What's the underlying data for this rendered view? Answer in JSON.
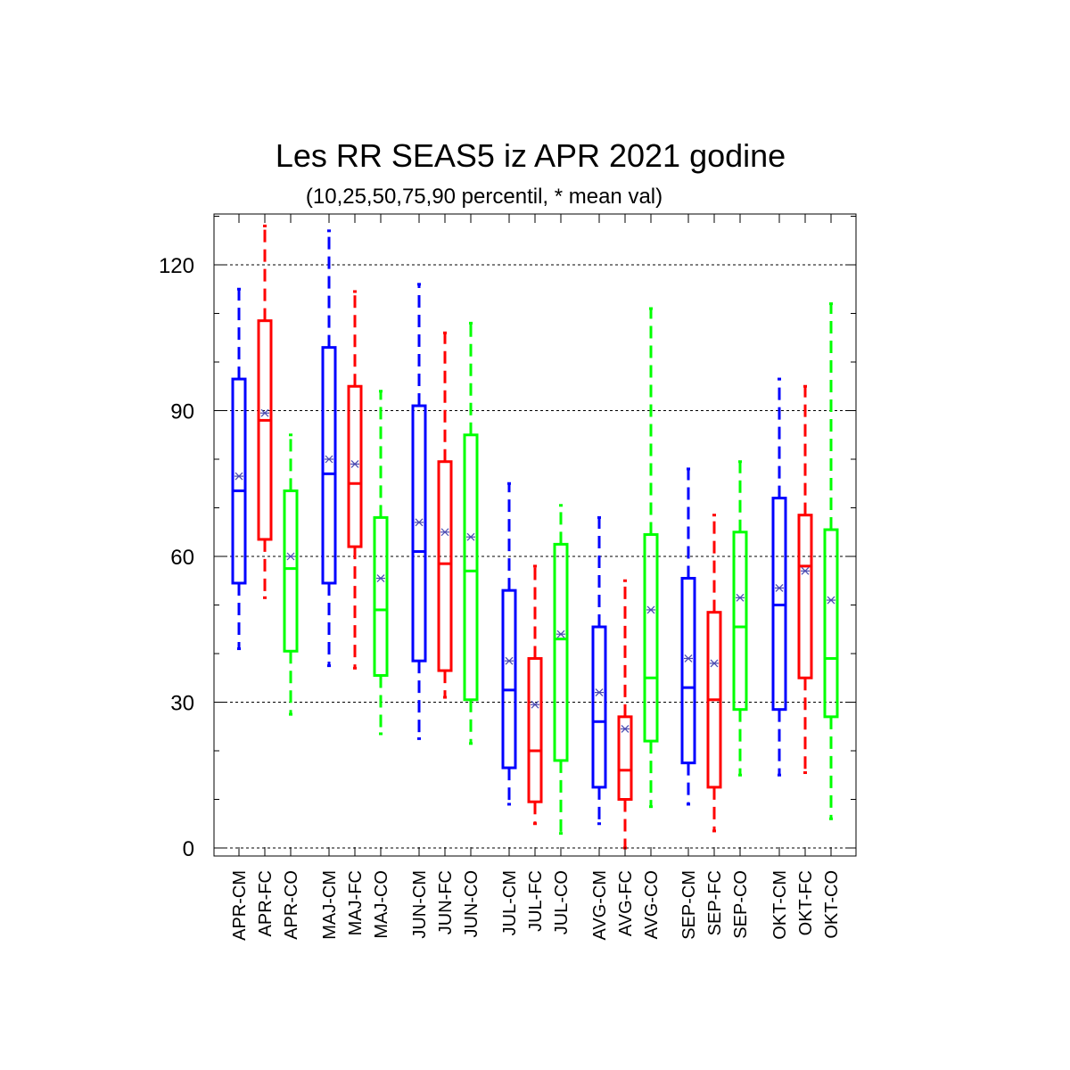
{
  "chart_data": {
    "type": "boxplot",
    "title": "Les RR SEAS5 iz APR 2021 godine",
    "subtitle": "(10,25,50,75,90 percentil, * mean val)",
    "xlabel": "",
    "ylabel": "",
    "ylim": [
      -2,
      130
    ],
    "yticks": [
      0,
      30,
      60,
      90,
      120
    ],
    "grid": "horizontal dashed at major ticks",
    "colors": {
      "CM": "#0000ff",
      "FC": "#ff0000",
      "CO": "#00ff00",
      "mean_marker": "#4a4ab0"
    },
    "boxes": [
      {
        "label": "APR-CM",
        "group": "CM",
        "p10": 41,
        "p25": 54.5,
        "p50": 73.5,
        "p75": 96.5,
        "p90": 115,
        "mean": 76.5
      },
      {
        "label": "APR-FC",
        "group": "FC",
        "p10": 51.5,
        "p25": 63.5,
        "p50": 88,
        "p75": 108.5,
        "p90": 128,
        "mean": 89.5
      },
      {
        "label": "APR-CO",
        "group": "CO",
        "p10": 27.5,
        "p25": 40.5,
        "p50": 57.5,
        "p75": 73.5,
        "p90": 85,
        "mean": 60
      },
      {
        "label": "MAJ-CM",
        "group": "CM",
        "p10": 37.5,
        "p25": 54.5,
        "p50": 77,
        "p75": 103,
        "p90": 127,
        "mean": 80
      },
      {
        "label": "MAJ-FC",
        "group": "FC",
        "p10": 37,
        "p25": 62,
        "p50": 75,
        "p75": 95,
        "p90": 114.5,
        "mean": 79
      },
      {
        "label": "MAJ-CO",
        "group": "CO",
        "p10": 23.5,
        "p25": 35.5,
        "p50": 49,
        "p75": 68,
        "p90": 94,
        "mean": 55.5
      },
      {
        "label": "JUN-CM",
        "group": "CM",
        "p10": 22.5,
        "p25": 38.5,
        "p50": 61,
        "p75": 91,
        "p90": 116,
        "mean": 67
      },
      {
        "label": "JUN-FC",
        "group": "FC",
        "p10": 31,
        "p25": 36.5,
        "p50": 58.5,
        "p75": 79.5,
        "p90": 106,
        "mean": 65
      },
      {
        "label": "JUN-CO",
        "group": "CO",
        "p10": 21.5,
        "p25": 30.5,
        "p50": 57,
        "p75": 85,
        "p90": 108,
        "mean": 64
      },
      {
        "label": "JUL-CM",
        "group": "CM",
        "p10": 9,
        "p25": 16.5,
        "p50": 32.5,
        "p75": 53,
        "p90": 75,
        "mean": 38.5
      },
      {
        "label": "JUL-FC",
        "group": "FC",
        "p10": 5,
        "p25": 9.5,
        "p50": 20,
        "p75": 39,
        "p90": 58,
        "mean": 29.5
      },
      {
        "label": "JUL-CO",
        "group": "CO",
        "p10": 3,
        "p25": 18,
        "p50": 43,
        "p75": 62.5,
        "p90": 70.5,
        "mean": 44
      },
      {
        "label": "AVG-CM",
        "group": "CM",
        "p10": 5,
        "p25": 12.5,
        "p50": 26,
        "p75": 45.5,
        "p90": 68,
        "mean": 32
      },
      {
        "label": "AVG-FC",
        "group": "FC",
        "p10": 0,
        "p25": 10,
        "p50": 16,
        "p75": 27,
        "p90": 55,
        "mean": 24.5
      },
      {
        "label": "AVG-CO",
        "group": "CO",
        "p10": 8.5,
        "p25": 22,
        "p50": 35,
        "p75": 64.5,
        "p90": 111,
        "mean": 49
      },
      {
        "label": "SEP-CM",
        "group": "CM",
        "p10": 9,
        "p25": 17.5,
        "p50": 33,
        "p75": 55.5,
        "p90": 78,
        "mean": 39
      },
      {
        "label": "SEP-FC",
        "group": "FC",
        "p10": 3.5,
        "p25": 12.5,
        "p50": 30.5,
        "p75": 48.5,
        "p90": 68.5,
        "mean": 38
      },
      {
        "label": "SEP-CO",
        "group": "CO",
        "p10": 15,
        "p25": 28.5,
        "p50": 45.5,
        "p75": 65,
        "p90": 79.5,
        "mean": 51.5
      },
      {
        "label": "OKT-CM",
        "group": "CM",
        "p10": 15,
        "p25": 28.5,
        "p50": 50,
        "p75": 72,
        "p90": 96.5,
        "mean": 53.5
      },
      {
        "label": "OKT-FC",
        "group": "FC",
        "p10": 15.5,
        "p25": 35,
        "p50": 58,
        "p75": 68.5,
        "p90": 95,
        "mean": 57
      },
      {
        "label": "OKT-CO",
        "group": "CO",
        "p10": 6,
        "p25": 27,
        "p50": 39,
        "p75": 65.5,
        "p90": 112,
        "mean": 51
      }
    ]
  }
}
